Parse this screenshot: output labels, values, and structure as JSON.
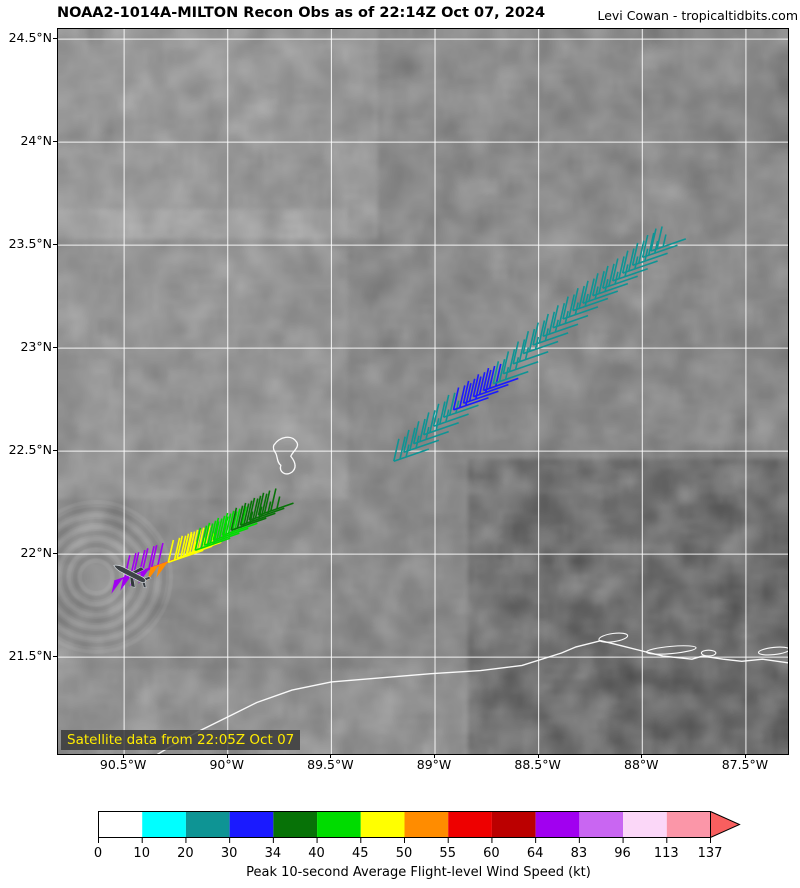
{
  "header": {
    "title": "NOAA2-1014A-MILTON Recon Obs as of 22:14Z Oct 07, 2024",
    "credit": "Levi Cowan - tropicaltidbits.com"
  },
  "map": {
    "annotation": {
      "text": "Satellite data from 22:05Z Oct 07",
      "text_color": "#ffec00",
      "bg_color": "#3a3a3a"
    },
    "grid_color": "#ffffff",
    "x_ticks": [
      {
        "label": "90.5°W",
        "lon": -90.5
      },
      {
        "label": "90°W",
        "lon": -90.0
      },
      {
        "label": "89.5°W",
        "lon": -89.5
      },
      {
        "label": "89°W",
        "lon": -89.0
      },
      {
        "label": "88.5°W",
        "lon": -88.5
      },
      {
        "label": "88°W",
        "lon": -88.0
      },
      {
        "label": "87.5°W",
        "lon": -87.5
      }
    ],
    "y_ticks": [
      {
        "label": "24.5°N",
        "lat": 24.5
      },
      {
        "label": "24°N",
        "lat": 24.0
      },
      {
        "label": "23.5°N",
        "lat": 23.5
      },
      {
        "label": "23°N",
        "lat": 23.0
      },
      {
        "label": "22.5°N",
        "lat": 22.5
      },
      {
        "label": "22°N",
        "lat": 22.0
      },
      {
        "label": "21.5°N",
        "lat": 21.5
      }
    ]
  },
  "chart_data": {
    "type": "map-windbarbs",
    "title": "NOAA2-1014A-MILTON Recon Obs as of 22:14Z Oct 07, 2024",
    "extent": {
      "lon": [
        -90.819,
        -87.297
      ],
      "lat": [
        21.03,
        24.549
      ]
    },
    "barbs_units": "kt",
    "barbs": [
      [
        -89.03,
        22.51,
        25
      ],
      [
        -88.982,
        22.553,
        25
      ],
      [
        -88.934,
        22.595,
        25
      ],
      [
        -88.886,
        22.638,
        25
      ],
      [
        -88.838,
        22.68,
        25
      ],
      [
        -88.79,
        22.723,
        25
      ],
      [
        -88.742,
        22.759,
        30
      ],
      [
        -88.694,
        22.791,
        30
      ],
      [
        -88.646,
        22.823,
        30
      ],
      [
        -88.598,
        22.853,
        30
      ],
      [
        -88.55,
        22.886,
        25
      ],
      [
        -88.502,
        22.934,
        25
      ],
      [
        -88.454,
        22.982,
        25
      ],
      [
        -88.406,
        23.032,
        25
      ],
      [
        -88.358,
        23.074,
        25
      ],
      [
        -88.31,
        23.116,
        25
      ],
      [
        -88.262,
        23.158,
        25
      ],
      [
        -88.214,
        23.2,
        25
      ],
      [
        -88.166,
        23.241,
        25
      ],
      [
        -88.118,
        23.277,
        25
      ],
      [
        -88.07,
        23.313,
        25
      ],
      [
        -88.022,
        23.349,
        25
      ],
      [
        -87.974,
        23.385,
        25
      ],
      [
        -87.926,
        23.423,
        25
      ],
      [
        -87.878,
        23.461,
        25
      ],
      [
        -87.83,
        23.499,
        25
      ],
      [
        -87.79,
        23.53,
        25
      ],
      [
        -90.379,
        21.927,
        70
      ],
      [
        -90.336,
        21.942,
        70
      ],
      [
        -90.292,
        21.961,
        70
      ],
      [
        -90.249,
        21.976,
        70
      ],
      [
        -90.205,
        21.99,
        50
      ],
      [
        -90.162,
        22.005,
        50
      ],
      [
        -90.118,
        22.019,
        45
      ],
      [
        -90.075,
        22.039,
        45
      ],
      [
        -90.031,
        22.058,
        45
      ],
      [
        -89.988,
        22.078,
        40
      ],
      [
        -89.944,
        22.102,
        40
      ],
      [
        -89.901,
        22.126,
        40
      ],
      [
        -89.857,
        22.15,
        40
      ],
      [
        -89.814,
        22.175,
        35
      ],
      [
        -89.77,
        22.199,
        35
      ],
      [
        -89.727,
        22.223,
        35
      ],
      [
        -89.683,
        22.248,
        35
      ]
    ],
    "aircraft": {
      "lon": -90.47,
      "lat": 21.905,
      "heading_deg": 207
    },
    "coastline": [
      [
        -90.37,
        21.01
      ],
      [
        -90.27,
        21.07
      ],
      [
        -90.13,
        21.145
      ],
      [
        -89.98,
        21.22
      ],
      [
        -89.86,
        21.28
      ],
      [
        -89.69,
        21.34
      ],
      [
        -89.5,
        21.38
      ],
      [
        -89.26,
        21.4
      ],
      [
        -89.02,
        21.42
      ],
      [
        -88.78,
        21.435
      ],
      [
        -88.58,
        21.46
      ],
      [
        -88.39,
        21.52
      ],
      [
        -88.32,
        21.55
      ],
      [
        -88.2,
        21.58
      ],
      [
        -88.1,
        21.555
      ],
      [
        -88.0,
        21.53
      ],
      [
        -87.9,
        21.505
      ],
      [
        -87.76,
        21.49
      ],
      [
        -87.71,
        21.505
      ],
      [
        -87.61,
        21.49
      ],
      [
        -87.52,
        21.48
      ],
      [
        -87.42,
        21.49
      ],
      [
        -87.28,
        21.47
      ]
    ],
    "reef": {
      "lon": -89.72,
      "lat": 22.48
    },
    "cays": [
      {
        "lon": -88.14,
        "lat": 21.595,
        "w": 0.14,
        "h": 0.04,
        "rot": -8
      },
      {
        "lon": -87.86,
        "lat": 21.535,
        "w": 0.24,
        "h": 0.035,
        "rot": -5
      },
      {
        "lon": -87.68,
        "lat": 21.52,
        "w": 0.07,
        "h": 0.028,
        "rot": 0
      },
      {
        "lon": -87.365,
        "lat": 21.53,
        "w": 0.15,
        "h": 0.035,
        "rot": -6
      }
    ]
  },
  "colorbar": {
    "caption": "Peak 10-second Average Flight-level Wind Speed (kt)",
    "bounds": [
      0,
      10,
      20,
      30,
      34,
      40,
      45,
      50,
      55,
      60,
      64,
      83,
      96,
      113,
      137
    ],
    "tick_labels": [
      "0",
      "10",
      "20",
      "30",
      "34",
      "40",
      "45",
      "50",
      "55",
      "60",
      "64",
      "83",
      "96",
      "113",
      "137"
    ],
    "colors": [
      "#ffffff",
      "#00ffff",
      "#0e9494",
      "#1a1aff",
      "#077207",
      "#00dc00",
      "#ffff00",
      "#ff8c00",
      "#ee0000",
      "#bb0000",
      "#a100f0",
      "#c966f2",
      "#fbd7f8",
      "#fb96a8"
    ],
    "arrow_color": "#f85f5f",
    "outline_color": "#000000"
  }
}
